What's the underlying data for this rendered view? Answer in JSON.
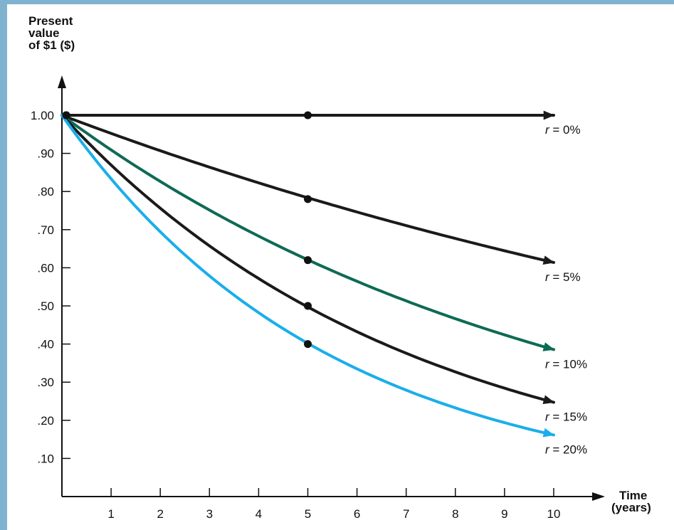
{
  "chart_data": {
    "type": "line",
    "yaxis_title": [
      "Present",
      "value",
      "of $1 ($)"
    ],
    "xaxis_title": [
      "Time",
      "(years)"
    ],
    "x_ticks": [
      1,
      2,
      3,
      4,
      5,
      6,
      7,
      8,
      9,
      10
    ],
    "x_tick_labels": [
      "1",
      "2",
      "3",
      "4",
      "5",
      "6",
      "7",
      "8",
      "9",
      "10"
    ],
    "y_ticks": [
      1.0,
      0.9,
      0.8,
      0.7,
      0.6,
      0.5,
      0.4,
      0.3,
      0.2,
      0.1
    ],
    "y_tick_labels": [
      "1.00",
      ".90",
      ".80",
      ".70",
      ".60",
      ".50",
      ".40",
      ".30",
      ".20",
      ".10"
    ],
    "xlim": [
      0,
      10
    ],
    "ylim": [
      0,
      1.0
    ],
    "grid": false,
    "series": [
      {
        "name": "r = 0%",
        "rate": 0.0,
        "var": "r",
        "pct": " = 0%",
        "color": "#1a1a1a",
        "x": [
          0,
          5,
          10
        ],
        "values": [
          1.0,
          1.0,
          1.0
        ]
      },
      {
        "name": "r = 5%",
        "rate": 0.05,
        "var": "r",
        "pct": " = 5%",
        "color": "#1a1a1a",
        "x": [
          0,
          5,
          10
        ],
        "values": [
          1.0,
          0.78,
          0.62
        ]
      },
      {
        "name": "r = 10%",
        "rate": 0.1,
        "var": "r",
        "pct": " = 10%",
        "color": "#0e6a55",
        "x": [
          0,
          5,
          10
        ],
        "values": [
          1.0,
          0.62,
          0.39
        ]
      },
      {
        "name": "r = 15%",
        "rate": 0.15,
        "var": "r",
        "pct": " = 15%",
        "color": "#1a1a1a",
        "x": [
          0,
          5,
          10
        ],
        "values": [
          1.0,
          0.5,
          0.25
        ]
      },
      {
        "name": "r = 20%",
        "rate": 0.2,
        "var": "r",
        "pct": " = 20%",
        "color": "#1aaeea",
        "x": [
          0,
          5,
          10
        ],
        "values": [
          1.0,
          0.4,
          0.16
        ]
      }
    ]
  }
}
